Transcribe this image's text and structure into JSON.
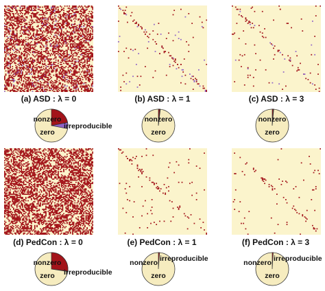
{
  "colors": {
    "zero": "#fbf4cc",
    "nonzero": "#a3141a",
    "irreproducible": "#8f63c8",
    "pie_zero": "#f6ecbf"
  },
  "panels": [
    {
      "id": "a",
      "caption": "(a) ASD : λ = 0",
      "density": 0.46,
      "irr": 0.05,
      "pattern": "dense"
    },
    {
      "id": "b",
      "caption": "(b) ASD : λ = 1",
      "density": 0.025,
      "irr": 0.25,
      "pattern": "sparse"
    },
    {
      "id": "c",
      "caption": "(c) ASD : λ = 3",
      "density": 0.02,
      "irr": 0.15,
      "pattern": "sparse"
    },
    {
      "id": "d",
      "caption": "(d) PedCon : λ = 0",
      "density": 0.5,
      "irr": 0.0,
      "pattern": "dense"
    },
    {
      "id": "e",
      "caption": "(e) PedCon : λ = 1",
      "density": 0.02,
      "irr": 0.0,
      "pattern": "sparse"
    },
    {
      "id": "f",
      "caption": "(f) PedCon : λ = 3",
      "density": 0.015,
      "irr": 0.0,
      "pattern": "sparse"
    }
  ],
  "pies": [
    {
      "id": "a",
      "labels": {
        "nonzero": "nonzero",
        "zero": "zero",
        "irreproducible": "irreproducible"
      },
      "fractions": {
        "nonzero": 0.22,
        "irreproducible": 0.06,
        "zero": 0.72
      }
    },
    {
      "id": "b",
      "labels": {
        "nonzero": "nonzero",
        "zero": "zero"
      },
      "fractions": {
        "nonzero": 0.015,
        "irreproducible": 0.004,
        "zero": 0.981
      }
    },
    {
      "id": "c",
      "labels": {
        "nonzero": "nonzero",
        "zero": "zero"
      },
      "fractions": {
        "nonzero": 0.012,
        "irreproducible": 0.003,
        "zero": 0.985
      }
    },
    {
      "id": "d",
      "labels": {
        "nonzero": "nonzero",
        "zero": "zero",
        "irreproducible": "irreproducible"
      },
      "fractions": {
        "nonzero": 0.27,
        "irreproducible": 0.004,
        "zero": 0.726
      }
    },
    {
      "id": "e",
      "labels": {
        "nonzero": "nonzero",
        "zero": "zero",
        "irreproducible": "irreproducible"
      },
      "fractions": {
        "nonzero": 0.012,
        "irreproducible": 0.0,
        "zero": 0.988
      }
    },
    {
      "id": "f",
      "labels": {
        "nonzero": "nonzero",
        "zero": "zero",
        "irreproducible": "irreproducible"
      },
      "fractions": {
        "nonzero": 0.01,
        "irreproducible": 0.0,
        "zero": 0.99
      }
    }
  ]
}
